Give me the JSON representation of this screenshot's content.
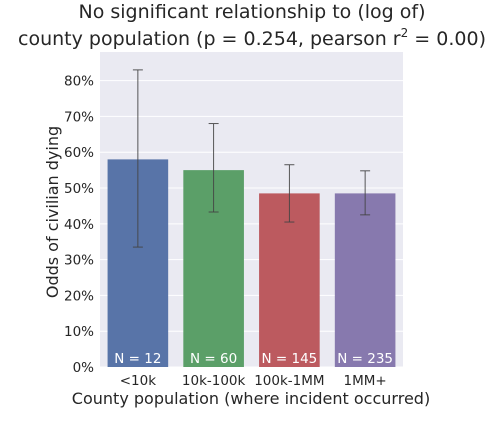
{
  "chart_data": {
    "type": "bar",
    "title_line1": "No significant relationship to (log of)",
    "title_line2_prefix": "county population (p = 0.254, pearson r",
    "title_superscript": "2",
    "title_line2_suffix": " = 0.00)",
    "xlabel": "County population (where incident occurred)",
    "ylabel": "Odds of civilian dying",
    "categories": [
      "<10k",
      "10k-100k",
      "100k-1MM",
      "1MM+"
    ],
    "values": [
      0.58,
      0.55,
      0.485,
      0.485
    ],
    "ci_low": [
      0.335,
      0.433,
      0.405,
      0.425
    ],
    "ci_high": [
      0.83,
      0.68,
      0.565,
      0.548
    ],
    "n_labels": [
      "N = 12",
      "N = 60",
      "N = 145",
      "N = 235"
    ],
    "colors": [
      "#5874a8",
      "#5b9f68",
      "#bc5a5f",
      "#8779ae"
    ],
    "ylim": [
      0,
      0.88
    ],
    "yticks": [
      0,
      0.1,
      0.2,
      0.3,
      0.4,
      0.5,
      0.6,
      0.7,
      0.8
    ],
    "ytick_labels": [
      "0%",
      "10%",
      "20%",
      "30%",
      "40%",
      "50%",
      "60%",
      "70%",
      "80%"
    ],
    "grid": true,
    "background": "#eaeaf2"
  }
}
